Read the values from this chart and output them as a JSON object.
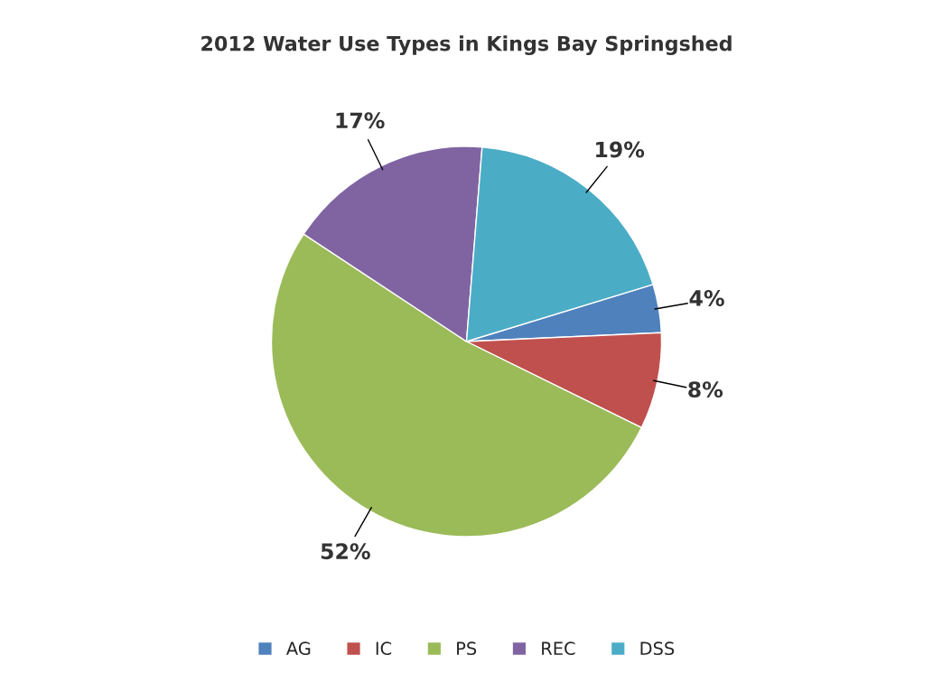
{
  "chart_data": {
    "type": "pie",
    "title": "2012 Water Use Types in Kings Bay Springshed",
    "categories": [
      "AG",
      "IC",
      "PS",
      "REC",
      "DSS"
    ],
    "values": [
      4,
      8,
      52,
      17,
      19
    ],
    "colors": [
      "#4f81bd",
      "#c0504d",
      "#9bbb59",
      "#8064a2",
      "#4bacc6"
    ],
    "value_labels": [
      "4%",
      "8%",
      "52%",
      "17%",
      "19%"
    ],
    "legend": "bottom"
  }
}
